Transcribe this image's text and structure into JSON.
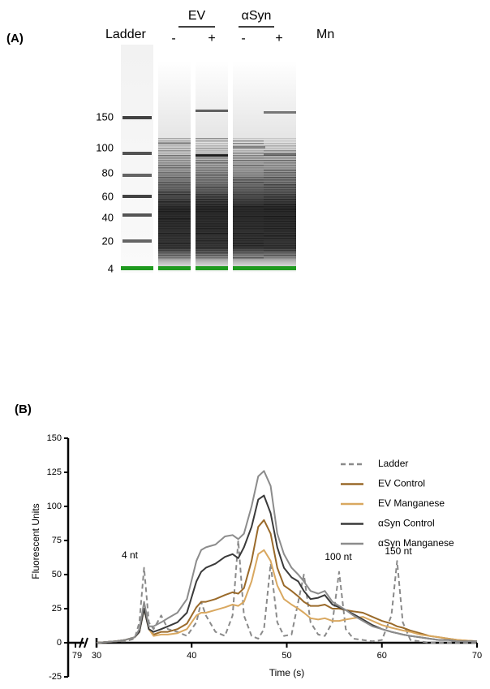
{
  "panel_a": {
    "label": "(A)",
    "lane_header": "Ladder",
    "groups": [
      {
        "name": "EV",
        "lanes": [
          "-",
          "+"
        ]
      },
      {
        "name": "αSyn",
        "lanes": [
          "-",
          "+"
        ]
      }
    ],
    "treatment": "Mn",
    "ladder_labels": [
      150,
      100,
      80,
      60,
      40,
      20,
      4
    ]
  },
  "chart_data": {
    "type": "line",
    "panel_label": "(B)",
    "x_label": "Time (s)",
    "y_label": "Fluorescent Units",
    "x": [
      30,
      32,
      33,
      34,
      34.5,
      35,
      35.5,
      36,
      36.8,
      37.5,
      38.5,
      39.5,
      40.5,
      41,
      41.5,
      42.5,
      43.5,
      44.3,
      44.9,
      45.5,
      46.3,
      47,
      47.6,
      48.3,
      49,
      49.7,
      50.5,
      51.2,
      51.8,
      52.5,
      53.3,
      54,
      54.8,
      55.5,
      56.2,
      57,
      58,
      59,
      60,
      61,
      61.6,
      62.2,
      63,
      64,
      65,
      66,
      67,
      68,
      70
    ],
    "xlim": [
      30,
      70
    ],
    "xticks": [
      30,
      40,
      50,
      60,
      70
    ],
    "break_ticks": [
      79
    ],
    "ylim": [
      -25,
      150
    ],
    "yticks": [
      -25,
      0,
      25,
      50,
      75,
      100,
      125,
      150
    ],
    "annotations": [
      "4 nt",
      "100 nt",
      "150 nt"
    ],
    "series": [
      {
        "name": "Ladder",
        "color": "#8a8a8a",
        "dashed": true,
        "values": [
          0,
          1,
          1,
          3,
          15,
          55,
          15,
          10,
          20,
          10,
          8,
          5,
          15,
          30,
          20,
          8,
          5,
          20,
          75,
          20,
          5,
          3,
          10,
          58,
          15,
          5,
          6,
          30,
          50,
          15,
          6,
          5,
          15,
          52,
          10,
          3,
          2,
          1,
          2,
          20,
          60,
          15,
          2,
          1,
          0,
          0,
          0,
          0,
          0
        ]
      },
      {
        "name": "EV Control",
        "color": "#9a6a2a",
        "dashed": false,
        "values": [
          0,
          1,
          2,
          4,
          8,
          25,
          10,
          6,
          8,
          8,
          10,
          14,
          26,
          30,
          30,
          32,
          35,
          37,
          36,
          40,
          60,
          85,
          90,
          80,
          55,
          42,
          38,
          34,
          30,
          27,
          27,
          28,
          25,
          25,
          24,
          23,
          22,
          19,
          16,
          14,
          12,
          11,
          9,
          7,
          5,
          4,
          3,
          2,
          1
        ]
      },
      {
        "name": "EV Manganese",
        "color": "#d9a860",
        "dashed": false,
        "values": [
          0,
          1,
          2,
          4,
          8,
          25,
          10,
          5,
          6,
          6,
          7,
          10,
          20,
          22,
          22,
          24,
          26,
          28,
          27,
          30,
          45,
          65,
          68,
          60,
          42,
          32,
          28,
          25,
          22,
          18,
          17,
          18,
          16,
          16,
          17,
          18,
          19,
          16,
          13,
          11,
          10,
          9,
          8,
          6,
          5,
          4,
          3,
          2,
          1
        ]
      },
      {
        "name": "αSyn Control",
        "color": "#3a3a3a",
        "dashed": false,
        "values": [
          0,
          1,
          2,
          4,
          8,
          25,
          10,
          8,
          10,
          12,
          15,
          22,
          45,
          52,
          55,
          58,
          63,
          65,
          62,
          70,
          85,
          105,
          108,
          95,
          70,
          55,
          48,
          45,
          38,
          32,
          33,
          35,
          28,
          26,
          24,
          21,
          17,
          13,
          10,
          8,
          7,
          6,
          5,
          4,
          3,
          2,
          2,
          1,
          1
        ]
      },
      {
        "name": "αSyn Manganese",
        "color": "#8c8c8c",
        "dashed": false,
        "values": [
          0,
          1,
          2,
          4,
          10,
          30,
          12,
          12,
          15,
          18,
          22,
          32,
          60,
          68,
          70,
          72,
          78,
          79,
          76,
          80,
          100,
          122,
          126,
          115,
          80,
          65,
          55,
          50,
          45,
          38,
          36,
          38,
          30,
          27,
          24,
          20,
          16,
          12,
          10,
          8,
          7,
          6,
          5,
          4,
          3,
          2,
          2,
          1,
          1
        ]
      }
    ]
  }
}
